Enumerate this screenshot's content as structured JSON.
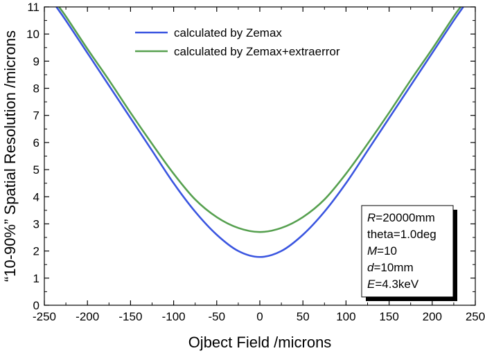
{
  "chart_data": {
    "type": "line",
    "xlabel": "Ojbect Field /microns",
    "ylabel": "“10-90%” Spatial Resolution /microns",
    "xlim": [
      -250,
      250
    ],
    "ylim": [
      0,
      11
    ],
    "x_ticks": [
      -250,
      -200,
      -150,
      -100,
      -50,
      0,
      50,
      100,
      150,
      200,
      250
    ],
    "y_ticks": [
      0,
      1,
      2,
      3,
      4,
      5,
      6,
      7,
      8,
      9,
      10,
      11
    ],
    "grid": false,
    "legend_position": "top-center",
    "series": [
      {
        "name": "calculated by Zemax",
        "color": "#3a55e0",
        "x": [
          -236,
          -225,
          -200,
          -175,
          -150,
          -125,
          -100,
          -75,
          -50,
          -25,
          0,
          25,
          50,
          75,
          100,
          125,
          150,
          175,
          200,
          225,
          236
        ],
        "y": [
          11.0,
          10.5,
          9.3,
          8.1,
          6.9,
          5.7,
          4.5,
          3.45,
          2.6,
          2.0,
          1.78,
          2.0,
          2.6,
          3.45,
          4.5,
          5.7,
          6.9,
          8.1,
          9.3,
          10.5,
          11.0
        ]
      },
      {
        "name": "calculated by Zemax+extraerror",
        "color": "#56a04f",
        "x": [
          -233,
          -225,
          -200,
          -175,
          -150,
          -125,
          -100,
          -75,
          -50,
          -25,
          0,
          25,
          50,
          75,
          100,
          125,
          150,
          175,
          200,
          225,
          233
        ],
        "y": [
          11.0,
          10.65,
          9.45,
          8.3,
          7.1,
          5.95,
          4.85,
          3.9,
          3.25,
          2.85,
          2.7,
          2.85,
          3.25,
          3.9,
          4.85,
          5.95,
          7.1,
          8.3,
          9.45,
          10.65,
          11.0
        ]
      }
    ],
    "annotation": {
      "lines": [
        {
          "var": "R",
          "text": "=20000mm"
        },
        {
          "var": "",
          "text": "theta=1.0deg"
        },
        {
          "var": "M",
          "text": "=10"
        },
        {
          "var": "d",
          "text": "=10mm"
        },
        {
          "var": "E",
          "text": "=4.3keV"
        }
      ]
    }
  }
}
